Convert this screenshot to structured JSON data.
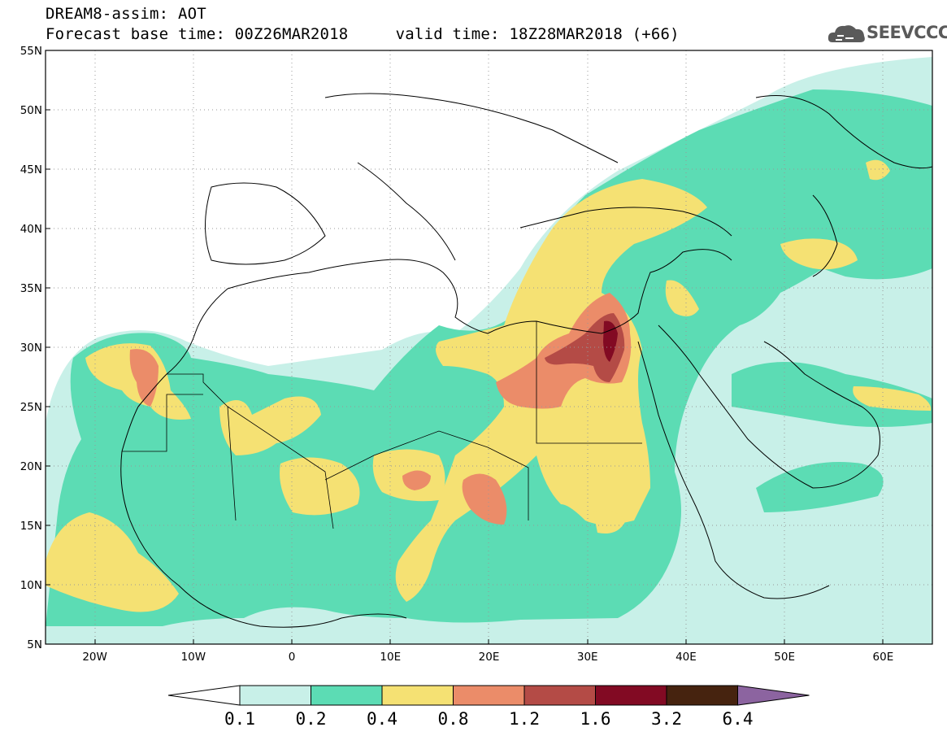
{
  "header": {
    "model_title": "DREAM8-assim: AOT",
    "base_time_label": "Forecast base time: 00Z26MAR2018",
    "valid_time_label": "valid time: 18Z28MAR2018 (+66)"
  },
  "logo": {
    "text": "SEEVCCC",
    "icon": "cloud-icon"
  },
  "map": {
    "lon_range": [
      -25,
      65
    ],
    "lat_range": [
      5,
      55
    ],
    "lat_ticks": [
      {
        "value": 55,
        "label": "55N"
      },
      {
        "value": 50,
        "label": "50N"
      },
      {
        "value": 45,
        "label": "45N"
      },
      {
        "value": 40,
        "label": "40N"
      },
      {
        "value": 35,
        "label": "35N"
      },
      {
        "value": 30,
        "label": "30N"
      },
      {
        "value": 25,
        "label": "25N"
      },
      {
        "value": 20,
        "label": "20N"
      },
      {
        "value": 15,
        "label": "15N"
      },
      {
        "value": 10,
        "label": "10N"
      },
      {
        "value": 5,
        "label": "5N"
      }
    ],
    "lon_ticks": [
      {
        "value": -20,
        "label": "20W"
      },
      {
        "value": -10,
        "label": "10W"
      },
      {
        "value": 0,
        "label": "0"
      },
      {
        "value": 10,
        "label": "10E"
      },
      {
        "value": 20,
        "label": "20E"
      },
      {
        "value": 30,
        "label": "30E"
      },
      {
        "value": 40,
        "label": "40E"
      },
      {
        "value": 50,
        "label": "50E"
      },
      {
        "value": 60,
        "label": "60E"
      }
    ],
    "grid": true
  },
  "colorbar": {
    "colors": [
      "#c8f0e8",
      "#5cdcb4",
      "#f5e173",
      "#eb8c69",
      "#b44b46",
      "#820a23",
      "#46230f",
      "#8c64a0"
    ],
    "levels": [
      "0.1",
      "0.2",
      "0.4",
      "0.8",
      "1.2",
      "1.6",
      "3.2",
      "6.4"
    ]
  }
}
